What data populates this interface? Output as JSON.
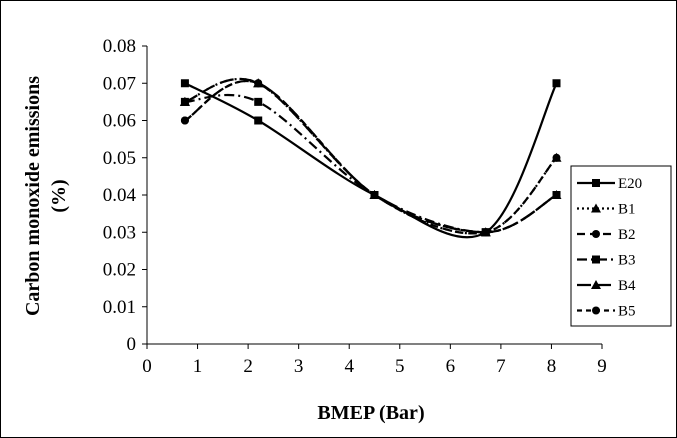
{
  "chart_data": {
    "type": "line",
    "title": "",
    "xlabel": "BMEP (Bar)",
    "ylabel_line1": "Carbon monoxide emissions",
    "ylabel_line2": "(%)",
    "xlim": [
      0,
      9
    ],
    "ylim": [
      0,
      0.08
    ],
    "x_ticks": [
      "0",
      "1",
      "2",
      "3",
      "4",
      "5",
      "6",
      "7",
      "8",
      "9"
    ],
    "y_ticks": [
      "0",
      "0.01",
      "0.02",
      "0.03",
      "0.04",
      "0.05",
      "0.06",
      "0.07",
      "0.08"
    ],
    "grid": false,
    "legend_position": "right",
    "series": [
      {
        "name": "E20",
        "dash": "solid",
        "marker": "square",
        "x": [
          0.75,
          2.2,
          4.5,
          6.7,
          8.1
        ],
        "y": [
          0.07,
          0.06,
          0.04,
          0.03,
          0.07
        ]
      },
      {
        "name": "B1",
        "dash": "dotted",
        "marker": "triangle",
        "x": [
          0.75,
          2.2,
          4.5,
          6.7,
          8.1
        ],
        "y": [
          0.065,
          0.07,
          0.04,
          0.03,
          0.05
        ]
      },
      {
        "name": "B2",
        "dash": "dashed",
        "marker": "circle",
        "x": [
          0.75,
          2.2,
          4.5,
          6.7,
          8.1
        ],
        "y": [
          0.06,
          0.07,
          0.04,
          0.03,
          0.05
        ]
      },
      {
        "name": "B3",
        "dash": "dashdot",
        "marker": "square",
        "x": [
          0.75,
          2.2,
          4.5,
          6.7,
          8.1
        ],
        "y": [
          0.065,
          0.065,
          0.04,
          0.03,
          0.04
        ]
      },
      {
        "name": "B4",
        "dash": "longdash",
        "marker": "triangle",
        "x": [
          0.75,
          2.2,
          4.5,
          6.7,
          8.1
        ],
        "y": [
          0.065,
          0.07,
          0.04,
          0.03,
          0.04
        ]
      },
      {
        "name": "B5",
        "dash": "shortdash",
        "marker": "circle",
        "x": [
          0.75,
          2.2,
          4.5,
          6.7,
          8.1
        ],
        "y": [
          0.06,
          0.07,
          0.04,
          0.03,
          0.04
        ]
      }
    ]
  }
}
